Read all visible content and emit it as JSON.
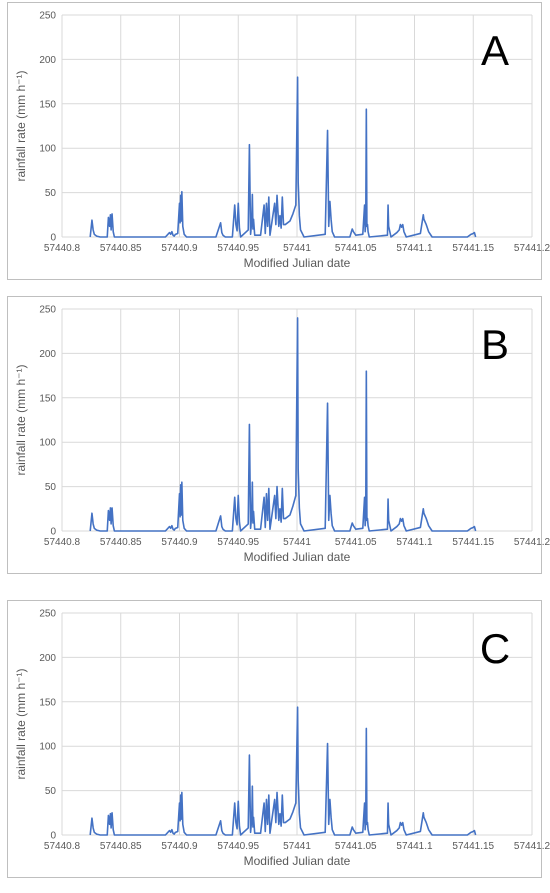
{
  "chart_data": [
    {
      "type": "line",
      "panel_label": "A",
      "xlabel": "Modified Julian date",
      "ylabel": "rainfall rate (mm h⁻¹)",
      "xlim": [
        57440.8,
        57441.2
      ],
      "ylim": [
        0,
        250
      ],
      "x_ticks": [
        57440.8,
        57440.85,
        57440.9,
        57440.95,
        57441,
        57441.05,
        57441.1,
        57441.15,
        57441.2
      ],
      "x_tick_labels": [
        "57440.8",
        "57440.85",
        "57440.9",
        "57440.95",
        "57441",
        "57441.05",
        "57441.1",
        "57441.15",
        "57441.2"
      ],
      "y_ticks": [
        0,
        50,
        100,
        150,
        200,
        250
      ],
      "y_tick_labels": [
        "0",
        "50",
        "100",
        "150",
        "200",
        "250"
      ],
      "grid": true,
      "color": "#4472c4",
      "series": [
        {
          "x": [
            57440.824,
            57440.8255,
            57440.8265,
            57440.8275,
            57440.8285,
            57440.8295,
            57440.8325,
            57440.8385,
            57440.8395,
            57440.8405,
            57440.8412,
            57440.8418,
            57440.8426,
            57440.8436,
            57440.8446,
            57440.888,
            57440.8915,
            57440.8925,
            57440.8935,
            57440.8945,
            57440.8955,
            57440.8965,
            57440.8985,
            57440.9,
            57440.9005,
            57440.901,
            57440.9015,
            57440.902,
            57440.9028,
            57440.904,
            57440.906,
            57440.931,
            57440.935,
            57440.936,
            57440.937,
            57440.939,
            57440.945,
            57440.947,
            57440.948,
            57440.949,
            57440.95,
            57440.951,
            57440.952,
            57440.9585,
            57440.9595,
            57440.9605,
            57440.9615,
            57440.962,
            57440.9625,
            57440.963,
            57440.964,
            57440.969,
            57440.972,
            57440.973,
            57440.974,
            57440.975,
            57440.976,
            57440.977,
            57440.981,
            57440.982,
            57440.983,
            57440.9845,
            57440.9855,
            57440.9865,
            57440.9875,
            57440.9885,
            57440.99,
            57440.994,
            57440.9965,
            57440.999,
            57441.0005,
            57441.001,
            57441.0015,
            57441.002,
            57441.003,
            57441.006,
            57441.024,
            57441.026,
            57441.027,
            57441.028,
            57441.029,
            57441.03,
            57441.032,
            57441.045,
            57441.047,
            57441.048,
            57441.05,
            57441.056,
            57441.0575,
            57441.058,
            57441.0585,
            57441.059,
            57441.0595,
            57441.06,
            57441.0605,
            57441.0615,
            57441.077,
            57441.0775,
            57441.078,
            57441.079,
            57441.08,
            57441.085,
            57441.087,
            57441.088,
            57441.089,
            57441.09,
            57441.091,
            57441.093,
            57441.105,
            57441.1075,
            57441.108,
            57441.11,
            57441.112,
            57441.115,
            57441.145,
            57441.148,
            57441.15,
            57441.151,
            57441.152
          ],
          "y": [
            0,
            19,
            8,
            3,
            2,
            1,
            0,
            0,
            22,
            12,
            25,
            8,
            26,
            6,
            0,
            0,
            5,
            3,
            6,
            2,
            1,
            3,
            4,
            38,
            16,
            47,
            18,
            51,
            12,
            3,
            0,
            0,
            16,
            5,
            2,
            0,
            0,
            36,
            14,
            7,
            38,
            10,
            0,
            8,
            104,
            3,
            18,
            48,
            9,
            20,
            2,
            2,
            36,
            4,
            38,
            12,
            45,
            2,
            38,
            14,
            47,
            12,
            24,
            10,
            45,
            14,
            14,
            18,
            26,
            36,
            180,
            62,
            44,
            24,
            8,
            0,
            3,
            120,
            12,
            40,
            20,
            6,
            0,
            0,
            9,
            6,
            2,
            3,
            36,
            6,
            15,
            144,
            12,
            14,
            6,
            0,
            2,
            36,
            12,
            6,
            0,
            5,
            8,
            14,
            11,
            14,
            6,
            0,
            4,
            25,
            20,
            14,
            6,
            0,
            0,
            3,
            4,
            5,
            0
          ]
        }
      ]
    },
    {
      "type": "line",
      "panel_label": "B",
      "xlabel": "Modified Julian date",
      "ylabel": "rainfall rate (mm h⁻¹)",
      "xlim": [
        57440.8,
        57441.2
      ],
      "ylim": [
        0,
        250
      ],
      "x_ticks": [
        57440.8,
        57440.85,
        57440.9,
        57440.95,
        57441,
        57441.05,
        57441.1,
        57441.15,
        57441.2
      ],
      "x_tick_labels": [
        "57440.8",
        "57440.85",
        "57440.9",
        "57440.95",
        "57441",
        "57441.05",
        "57441.1",
        "57441.15",
        "57441.2"
      ],
      "y_ticks": [
        0,
        50,
        100,
        150,
        200,
        250
      ],
      "y_tick_labels": [
        "0",
        "50",
        "100",
        "150",
        "200",
        "250"
      ],
      "grid": true,
      "color": "#4472c4",
      "series": [
        {
          "x": [
            57440.824,
            57440.8255,
            57440.8265,
            57440.8275,
            57440.8285,
            57440.8295,
            57440.8325,
            57440.8385,
            57440.8395,
            57440.8405,
            57440.8412,
            57440.8418,
            57440.8426,
            57440.8436,
            57440.8446,
            57440.888,
            57440.8915,
            57440.8925,
            57440.8935,
            57440.8945,
            57440.8955,
            57440.8965,
            57440.8985,
            57440.9,
            57440.9005,
            57440.901,
            57440.9015,
            57440.902,
            57440.9028,
            57440.904,
            57440.906,
            57440.931,
            57440.935,
            57440.936,
            57440.937,
            57440.939,
            57440.945,
            57440.947,
            57440.948,
            57440.949,
            57440.95,
            57440.951,
            57440.952,
            57440.9585,
            57440.9595,
            57440.9605,
            57440.9615,
            57440.962,
            57440.9625,
            57440.963,
            57440.964,
            57440.969,
            57440.972,
            57440.973,
            57440.974,
            57440.975,
            57440.976,
            57440.977,
            57440.981,
            57440.982,
            57440.983,
            57440.9845,
            57440.9855,
            57440.9865,
            57440.9875,
            57440.9885,
            57440.99,
            57440.994,
            57440.9965,
            57440.999,
            57441.0005,
            57441.001,
            57441.0015,
            57441.002,
            57441.003,
            57441.006,
            57441.024,
            57441.026,
            57441.027,
            57441.028,
            57441.029,
            57441.03,
            57441.032,
            57441.045,
            57441.047,
            57441.048,
            57441.05,
            57441.056,
            57441.0575,
            57441.058,
            57441.0585,
            57441.059,
            57441.0595,
            57441.06,
            57441.0605,
            57441.0615,
            57441.077,
            57441.0775,
            57441.078,
            57441.079,
            57441.08,
            57441.085,
            57441.087,
            57441.088,
            57441.089,
            57441.09,
            57441.091,
            57441.093,
            57441.105,
            57441.1075,
            57441.108,
            57441.11,
            57441.112,
            57441.115,
            57441.145,
            57441.148,
            57441.15,
            57441.151,
            57441.152
          ],
          "y": [
            0,
            20,
            8,
            3,
            2,
            1,
            0,
            0,
            23,
            12,
            26,
            8,
            26,
            6,
            0,
            0,
            5,
            3,
            6,
            2,
            1,
            3,
            4,
            42,
            16,
            52,
            18,
            55,
            12,
            3,
            0,
            0,
            17,
            5,
            2,
            0,
            0,
            38,
            14,
            7,
            40,
            10,
            0,
            8,
            120,
            3,
            18,
            55,
            9,
            22,
            2,
            2,
            38,
            4,
            42,
            12,
            48,
            2,
            40,
            14,
            50,
            12,
            25,
            10,
            48,
            14,
            14,
            18,
            28,
            40,
            240,
            70,
            48,
            26,
            8,
            0,
            3,
            144,
            12,
            40,
            20,
            6,
            0,
            0,
            9,
            6,
            2,
            3,
            38,
            6,
            16,
            180,
            12,
            14,
            6,
            0,
            2,
            36,
            12,
            6,
            0,
            5,
            8,
            14,
            11,
            14,
            6,
            0,
            4,
            25,
            20,
            14,
            6,
            0,
            0,
            3,
            4,
            5,
            0
          ]
        }
      ]
    },
    {
      "type": "line",
      "panel_label": "C",
      "xlabel": "Modified Julian date",
      "ylabel": "rainfall rate (mm h⁻¹)",
      "xlim": [
        57440.8,
        57441.2
      ],
      "ylim": [
        0,
        250
      ],
      "x_ticks": [
        57440.8,
        57440.85,
        57440.9,
        57440.95,
        57441,
        57441.05,
        57441.1,
        57441.15,
        57441.2
      ],
      "x_tick_labels": [
        "57440.8",
        "57440.85",
        "57440.9",
        "57440.95",
        "57441",
        "57441.05",
        "57441.1",
        "57441.15",
        "57441.2"
      ],
      "y_ticks": [
        0,
        50,
        100,
        150,
        200,
        250
      ],
      "y_tick_labels": [
        "0",
        "50",
        "100",
        "150",
        "200",
        "250"
      ],
      "grid": true,
      "color": "#4472c4",
      "series": [
        {
          "x": [
            57440.824,
            57440.8255,
            57440.8265,
            57440.8275,
            57440.8285,
            57440.8295,
            57440.8325,
            57440.8385,
            57440.8395,
            57440.8405,
            57440.8412,
            57440.8418,
            57440.8426,
            57440.8436,
            57440.8446,
            57440.888,
            57440.8915,
            57440.8925,
            57440.8935,
            57440.8945,
            57440.8955,
            57440.8965,
            57440.8985,
            57440.9,
            57440.9005,
            57440.901,
            57440.9015,
            57440.902,
            57440.9028,
            57440.904,
            57440.906,
            57440.931,
            57440.935,
            57440.936,
            57440.937,
            57440.939,
            57440.945,
            57440.947,
            57440.948,
            57440.949,
            57440.95,
            57440.951,
            57440.952,
            57440.9585,
            57440.9595,
            57440.9605,
            57440.9615,
            57440.962,
            57440.9625,
            57440.963,
            57440.964,
            57440.969,
            57440.972,
            57440.973,
            57440.974,
            57440.975,
            57440.976,
            57440.977,
            57440.981,
            57440.982,
            57440.983,
            57440.9845,
            57440.9855,
            57440.9865,
            57440.9875,
            57440.9885,
            57440.99,
            57440.994,
            57440.9965,
            57440.999,
            57441.0005,
            57441.001,
            57441.0015,
            57441.002,
            57441.003,
            57441.006,
            57441.024,
            57441.026,
            57441.027,
            57441.028,
            57441.029,
            57441.03,
            57441.032,
            57441.045,
            57441.047,
            57441.048,
            57441.05,
            57441.056,
            57441.0575,
            57441.058,
            57441.0585,
            57441.059,
            57441.0595,
            57441.06,
            57441.0605,
            57441.0615,
            57441.077,
            57441.0775,
            57441.078,
            57441.079,
            57441.08,
            57441.085,
            57441.087,
            57441.088,
            57441.089,
            57441.09,
            57441.091,
            57441.093,
            57441.105,
            57441.1075,
            57441.108,
            57441.11,
            57441.112,
            57441.115,
            57441.145,
            57441.148,
            57441.15,
            57441.151,
            57441.152
          ],
          "y": [
            0,
            19,
            8,
            3,
            2,
            1,
            0,
            0,
            22,
            12,
            24,
            8,
            25,
            6,
            0,
            0,
            5,
            3,
            6,
            2,
            1,
            3,
            4,
            36,
            16,
            45,
            18,
            48,
            12,
            3,
            0,
            0,
            16,
            5,
            2,
            0,
            0,
            36,
            14,
            7,
            38,
            10,
            0,
            8,
            90,
            3,
            18,
            55,
            9,
            20,
            2,
            2,
            36,
            4,
            40,
            12,
            45,
            2,
            40,
            14,
            48,
            12,
            24,
            10,
            45,
            14,
            14,
            18,
            26,
            36,
            144,
            62,
            44,
            24,
            8,
            0,
            3,
            103,
            12,
            40,
            20,
            6,
            0,
            0,
            9,
            6,
            2,
            3,
            36,
            6,
            15,
            120,
            12,
            14,
            6,
            0,
            2,
            36,
            12,
            6,
            0,
            5,
            8,
            14,
            11,
            14,
            6,
            0,
            4,
            25,
            20,
            14,
            6,
            0,
            0,
            3,
            4,
            5,
            0
          ]
        }
      ]
    }
  ]
}
